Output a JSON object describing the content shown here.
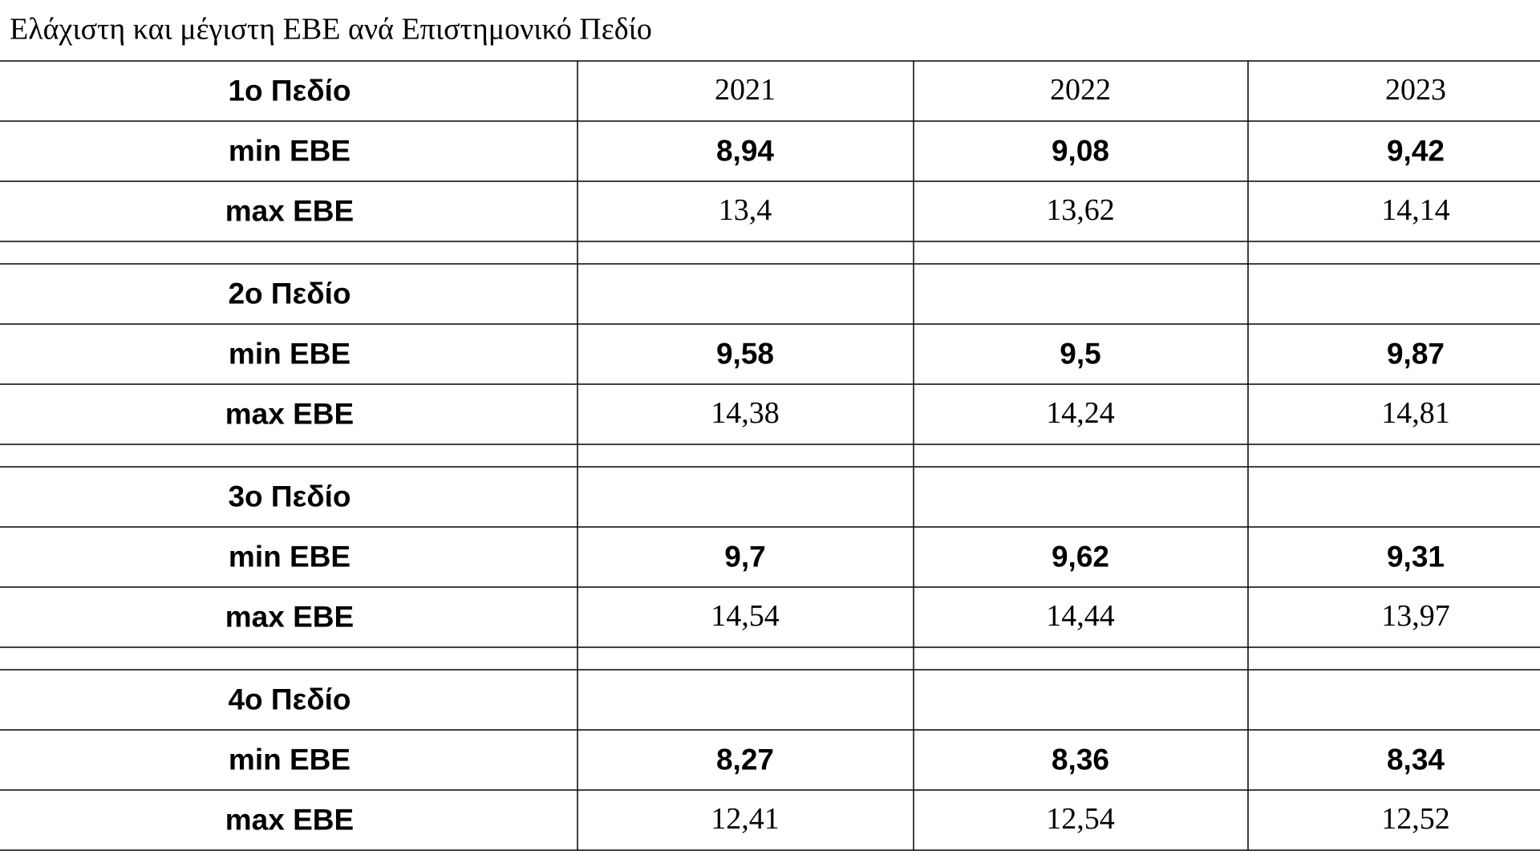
{
  "title": "Ελάχιστη και μέγιστη ΕΒΕ ανά Επιστημονικό Πεδίο",
  "columns": [
    "2021",
    "2022",
    "2023"
  ],
  "sections": [
    {
      "label": "1ο Πεδίο",
      "rows": [
        {
          "label": "min ΕΒΕ",
          "values": [
            "8,94",
            "9,08",
            "9,42"
          ]
        },
        {
          "label": "max ΕΒΕ",
          "values": [
            "13,4",
            "13,62",
            "14,14"
          ]
        }
      ]
    },
    {
      "label": "2ο Πεδίο",
      "rows": [
        {
          "label": "min ΕΒΕ",
          "values": [
            "9,58",
            "9,5",
            "9,87"
          ]
        },
        {
          "label": "max ΕΒΕ",
          "values": [
            "14,38",
            "14,24",
            "14,81"
          ]
        }
      ]
    },
    {
      "label": "3ο Πεδίο",
      "rows": [
        {
          "label": "min ΕΒΕ",
          "values": [
            "9,7",
            "9,62",
            "9,31"
          ]
        },
        {
          "label": "max ΕΒΕ",
          "values": [
            "14,54",
            "14,44",
            "13,97"
          ]
        }
      ]
    },
    {
      "label": "4ο Πεδίο",
      "rows": [
        {
          "label": "min ΕΒΕ",
          "values": [
            "8,27",
            "8,36",
            "8,34"
          ]
        },
        {
          "label": "max ΕΒΕ",
          "values": [
            "12,41",
            "12,54",
            "12,52"
          ]
        }
      ]
    }
  ]
}
